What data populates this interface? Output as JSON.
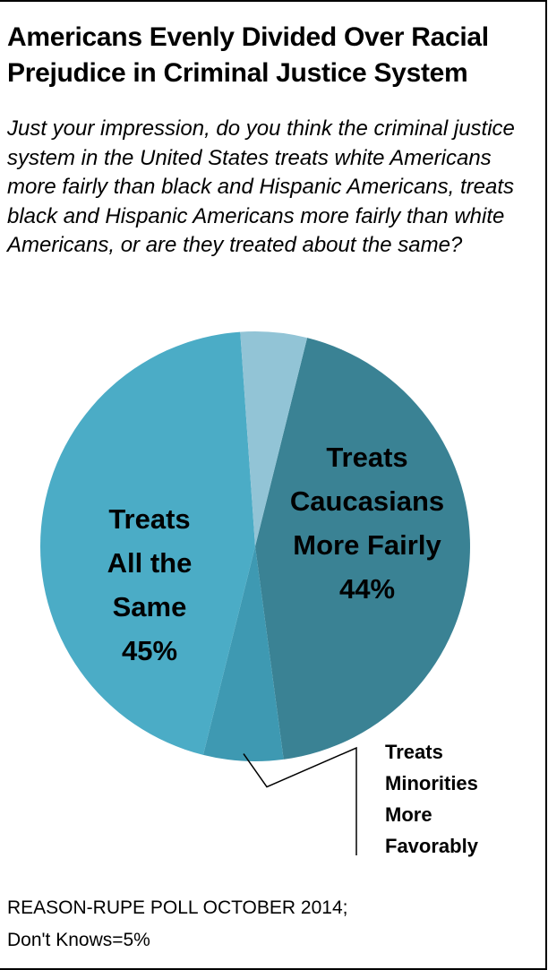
{
  "chart_data": {
    "type": "pie",
    "title": "Americans Evenly Divided Over Racial Prejudice in Criminal Justice System",
    "subtitle": "Just your impression, do you think the criminal justice system in the United States treats white Americans more fairly than black and Hispanic Americans, treats black and Hispanic Americans more fairly than white Americans, or are they treated about the same?",
    "slices": [
      {
        "label": "Treats Caucasians More Fairly",
        "label_lines": [
          "Treats",
          "Caucasians",
          "More Fairly"
        ],
        "value": 44,
        "value_label": "44%",
        "color": "#3a8294"
      },
      {
        "label": "Treats Minorities More Favorably",
        "label_lines": [
          "Treats",
          "Minorities",
          "More",
          "Favorably"
        ],
        "value": 6,
        "value_label": "",
        "color": "#3e99b2"
      },
      {
        "label": "Treats All the Same",
        "label_lines": [
          "Treats",
          "All the",
          "Same"
        ],
        "value": 45,
        "value_label": "45%",
        "color": "#4bacc6"
      },
      {
        "label": "Don't Knows",
        "label_lines": [],
        "value": 5,
        "value_label": "",
        "color": "#92c4d6"
      }
    ],
    "legend": "none"
  },
  "source": {
    "line1": "REASON-RUPE POLL OCTOBER 2014;",
    "line2": "Don't Knows=5%"
  }
}
